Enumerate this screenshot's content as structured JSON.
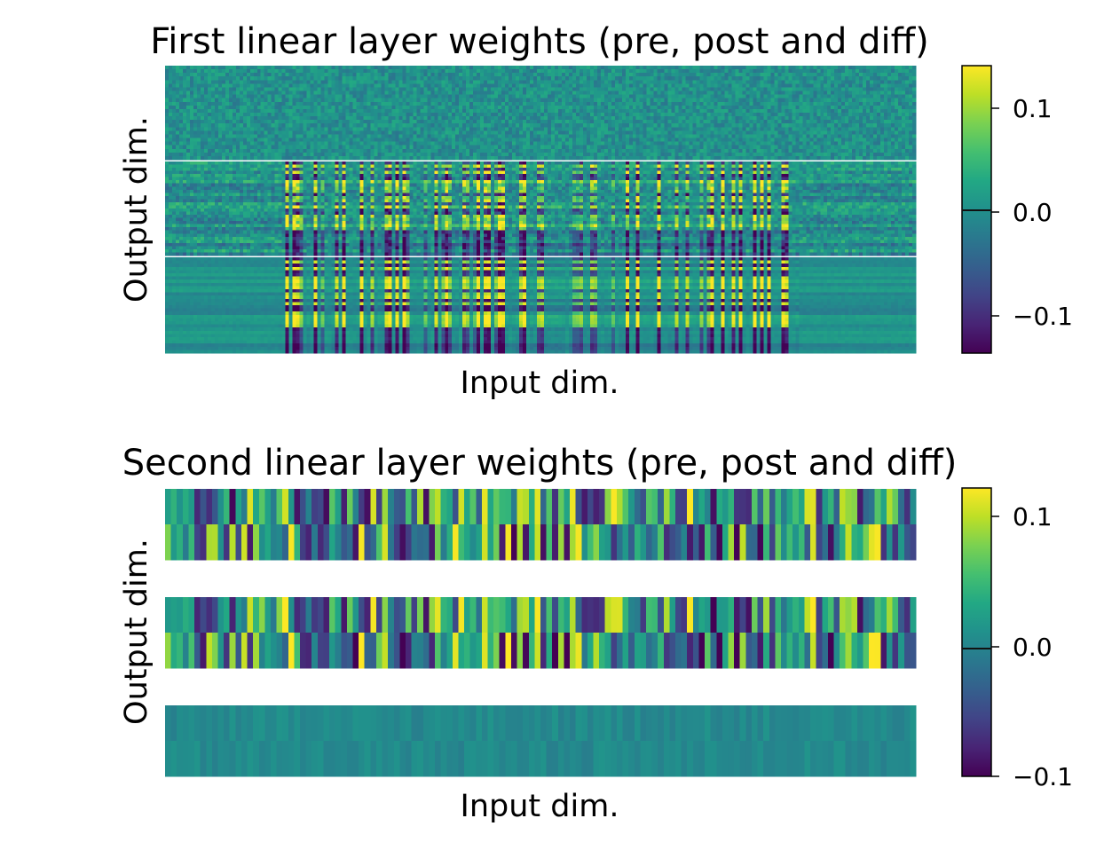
{
  "chart_data": [
    {
      "type": "heatmap",
      "title": "First linear layer weights (pre, post and diff)",
      "xlabel": "Input dim.",
      "ylabel": "Output dim.",
      "panels": [
        "pre",
        "post",
        "diff"
      ],
      "colormap": "viridis",
      "colorbar": {
        "range": [
          -0.135,
          0.145
        ],
        "ticks": [
          0.1,
          0.0,
          -0.1
        ],
        "tick_labels": [
          "0.1",
          "0.0",
          "−0.1"
        ]
      },
      "grid": false
    },
    {
      "type": "heatmap",
      "title": "Second linear layer weights (pre, post and diff)",
      "xlabel": "Input dim.",
      "ylabel": "Output dim.",
      "panels": [
        "pre",
        "post",
        "diff"
      ],
      "rows_per_panel": 2,
      "colormap": "viridis",
      "colorbar": {
        "range": [
          -0.1,
          0.12
        ],
        "ticks": [
          0.1,
          0.0,
          -0.1
        ],
        "tick_labels": [
          "0.1",
          "0.0",
          "−0.1"
        ]
      },
      "grid": false
    }
  ]
}
